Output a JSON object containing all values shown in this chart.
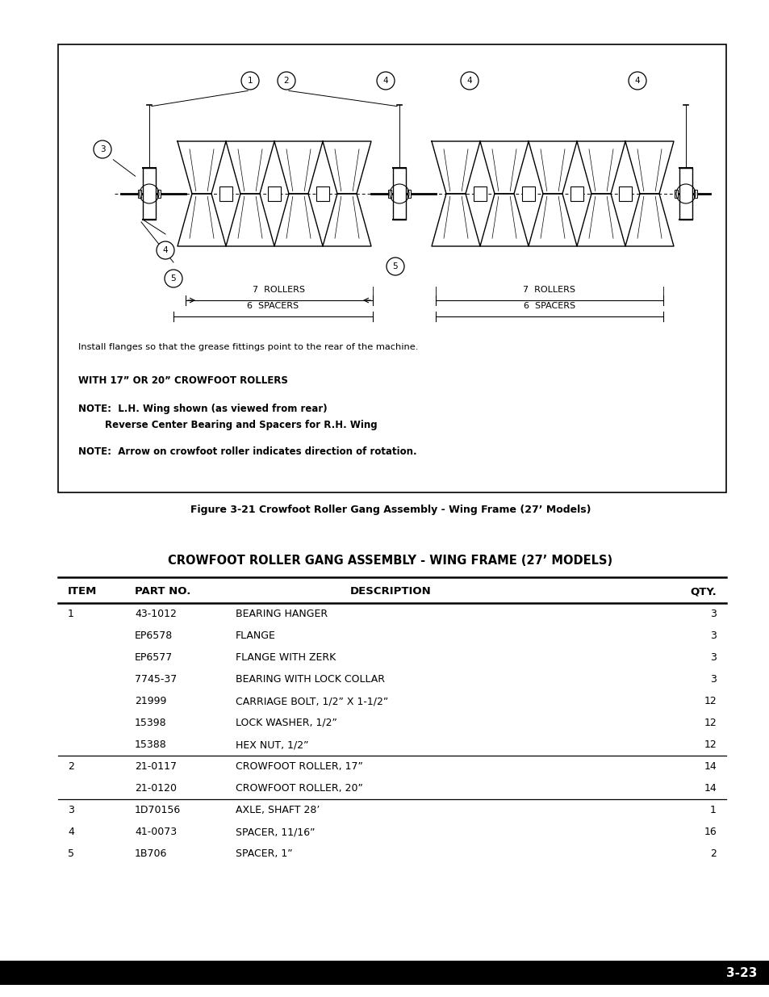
{
  "page_bg": "#ffffff",
  "figure_caption": "Figure 3-21 Crowfoot Roller Gang Assembly - Wing Frame (27’ Models)",
  "table_title": "CROWFOOT ROLLER GANG ASSEMBLY - WING FRAME (27’ MODELS)",
  "table_headers": [
    "ITEM",
    "PART NO.",
    "DESCRIPTION",
    "QTY."
  ],
  "table_rows": [
    [
      "1",
      "43-1012",
      "BEARING HANGER",
      "3"
    ],
    [
      "",
      "EP6578",
      "FLANGE",
      "3"
    ],
    [
      "",
      "EP6577",
      "FLANGE WITH ZERK",
      "3"
    ],
    [
      "",
      "7745-37",
      "BEARING WITH LOCK COLLAR",
      "3"
    ],
    [
      "",
      "21999",
      "CARRIAGE BOLT, 1/2” X 1-1/2”",
      "12"
    ],
    [
      "",
      "15398",
      "LOCK WASHER, 1/2”",
      "12"
    ],
    [
      "",
      "15388",
      "HEX NUT, 1/2”",
      "12"
    ],
    [
      "2",
      "21-0117",
      "CROWFOOT ROLLER, 17”",
      "14"
    ],
    [
      "",
      "21-0120",
      "CROWFOOT ROLLER, 20”",
      "14"
    ],
    [
      "3",
      "1D70156",
      "AXLE, SHAFT 28’",
      "1"
    ],
    [
      "4",
      "41-0073",
      "SPACER, 11/16”",
      "16"
    ],
    [
      "5",
      "1B706",
      "SPACER, 1”",
      "2"
    ]
  ],
  "dividers_after_rows": [
    6,
    8
  ],
  "note1": "Install flanges so that the grease fittings point to the rear of the machine.",
  "note2": "WITH 17” OR 20” CROWFOOT ROLLERS",
  "note3a": "NOTE:  L.H. Wing shown (as viewed from rear)",
  "note3b": "        Reverse Center Bearing and Spacers for R.H. Wing",
  "note4": "NOTE:  Arrow on crowfoot roller indicates direction of rotation.",
  "footer_text": "3-23"
}
